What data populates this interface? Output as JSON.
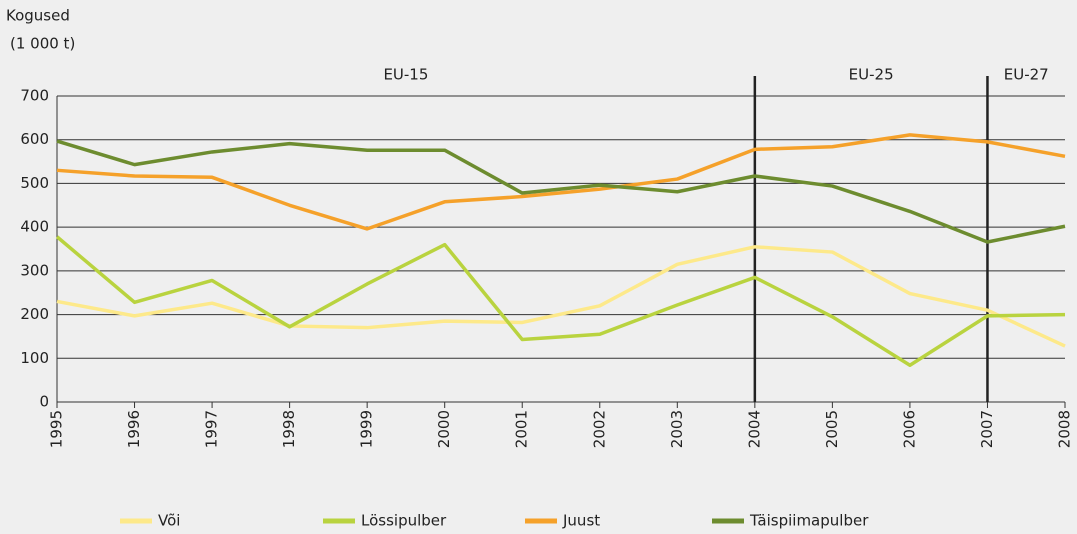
{
  "chart_data": {
    "type": "line",
    "y_label": [
      "Kogused",
      "(1 000 t)"
    ],
    "x": [
      1995,
      1996,
      1997,
      1998,
      1999,
      2000,
      2001,
      2002,
      2003,
      2004,
      2005,
      2006,
      2007,
      2008
    ],
    "xlim": [
      1995,
      2008
    ],
    "ylim": [
      0,
      700
    ],
    "yticks": [
      0,
      100,
      200,
      300,
      400,
      500,
      600,
      700
    ],
    "grid": true,
    "legend": "bottom",
    "periods": [
      {
        "label": "EU-15",
        "start": 1995,
        "end": 2004
      },
      {
        "label": "EU-25",
        "start": 2004,
        "end": 2007
      },
      {
        "label": "EU-27",
        "start": 2007,
        "end": 2008
      }
    ],
    "series": [
      {
        "name": "Või",
        "color": "#fde98a",
        "values": [
          230,
          197,
          226,
          174,
          170,
          185,
          182,
          220,
          315,
          355,
          343,
          248,
          210,
          128
        ]
      },
      {
        "name": "Lössipulber",
        "color": "#b9d33f",
        "values": [
          378,
          228,
          278,
          172,
          270,
          360,
          143,
          155,
          222,
          285,
          195,
          84,
          197,
          200
        ]
      },
      {
        "name": "Juust",
        "color": "#f5a12a",
        "values": [
          530,
          517,
          514,
          450,
          396,
          458,
          470,
          487,
          510,
          578,
          584,
          611,
          595,
          562
        ]
      },
      {
        "name": "Täispiimapulber",
        "color": "#6d8c2f",
        "values": [
          597,
          543,
          572,
          591,
          576,
          576,
          478,
          496,
          481,
          517,
          494,
          436,
          366,
          402
        ]
      }
    ]
  }
}
